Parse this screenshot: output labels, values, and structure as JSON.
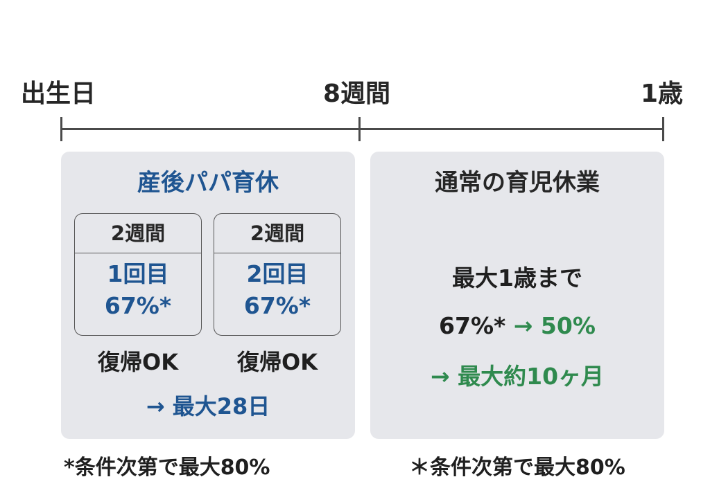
{
  "timeline": {
    "start_label": "出生日",
    "mid_label": "8週間",
    "end_label": "1歳"
  },
  "left_panel": {
    "title": "産後パパ育休",
    "boxes": [
      {
        "period": "2週間",
        "round": "1回目",
        "rate": "67%*",
        "return": "復帰OK"
      },
      {
        "period": "2週間",
        "round": "2回目",
        "rate": "67%*",
        "return": "復帰OK"
      }
    ],
    "max_total": "→ 最大28日",
    "footnote": "*条件次第で最大80%"
  },
  "right_panel": {
    "title": "通常の育児休業",
    "duration": "最大1歳まで",
    "rate_start": "67%*",
    "rate_change": "→ 50%",
    "switch_note": "→ 最大約10ヶ月",
    "footnote": "＊条件次第で最大80%"
  },
  "colors": {
    "accent_blue": "#1f5591",
    "accent_green": "#2f8a4e",
    "panel_bg": "#e6e7eb",
    "line": "#4a4a4a"
  }
}
